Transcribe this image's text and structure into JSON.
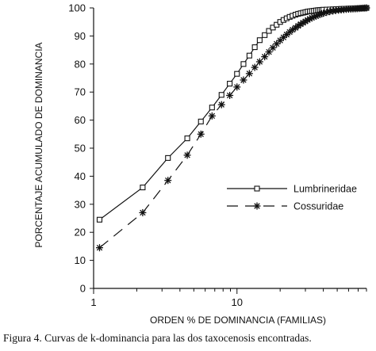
{
  "caption": "Figura 4. Curvas de k-dominancia para las dos taxocenosis encontradas.",
  "chart_data": {
    "type": "line",
    "xscale": "log",
    "xlim": [
      1,
      80
    ],
    "ylim": [
      0,
      100
    ],
    "xticks": [
      1,
      10
    ],
    "xtick_labels": [
      "1",
      "10"
    ],
    "yticks": [
      0,
      10,
      20,
      30,
      40,
      50,
      60,
      70,
      80,
      90,
      100
    ],
    "xlabel": "ORDEN % DE DOMINANCIA (FAMILIAS)",
    "ylabel": "PORCENTAJE ACUMULADO DE DOMINANCIA",
    "legend_position": "center-right",
    "series": [
      {
        "name": "Lumbrineridae",
        "marker": "square",
        "line_style": "solid",
        "x": [
          1.1,
          2.2,
          3.3,
          4.5,
          5.6,
          6.7,
          7.8,
          8.9,
          10.0,
          11.1,
          12.2,
          13.3,
          14.4,
          15.6,
          16.7,
          17.8,
          18.9,
          20.0,
          21.1,
          22.2,
          23.3,
          24.4,
          25.6,
          26.7,
          27.8,
          28.9,
          30.0,
          31.1,
          32.2,
          33.3,
          34.4,
          35.6,
          36.7,
          37.8,
          38.9,
          40.0,
          42.2,
          44.4,
          46.7,
          48.9,
          51.1,
          53.3,
          55.6,
          57.8,
          60.0,
          62.2,
          64.4,
          66.7,
          68.9,
          71.1,
          73.3,
          75.6,
          77.8,
          80.0
        ],
        "y": [
          24.5,
          36.0,
          46.5,
          53.5,
          59.5,
          64.5,
          69.0,
          73.0,
          76.5,
          80.0,
          83.0,
          86.0,
          88.5,
          90.3,
          91.8,
          93.0,
          94.0,
          95.0,
          95.7,
          96.3,
          96.8,
          97.2,
          97.6,
          97.9,
          98.1,
          98.3,
          98.5,
          98.7,
          98.8,
          98.9,
          99.0,
          99.1,
          99.2,
          99.25,
          99.3,
          99.35,
          99.4,
          99.45,
          99.5,
          99.55,
          99.6,
          99.65,
          99.7,
          99.72,
          99.75,
          99.78,
          99.8,
          99.82,
          99.85,
          99.87,
          99.9,
          99.92,
          99.95,
          100.0
        ]
      },
      {
        "name": "Cossuridae",
        "marker": "asterisk",
        "line_style": "dashed",
        "x": [
          1.1,
          2.2,
          3.3,
          4.5,
          5.6,
          6.7,
          7.8,
          8.9,
          10.0,
          11.1,
          12.2,
          13.3,
          14.4,
          15.6,
          16.7,
          17.8,
          18.9,
          20.0,
          21.1,
          22.2,
          23.3,
          24.4,
          25.6,
          26.7,
          27.8,
          28.9,
          30.0,
          31.1,
          32.2,
          33.3,
          34.4,
          35.6,
          36.7,
          37.8,
          38.9,
          40.0,
          42.2,
          44.4,
          46.7,
          48.9,
          51.1,
          53.3,
          55.6,
          57.8,
          60.0,
          62.2,
          64.4,
          66.7,
          68.9,
          71.1,
          73.3,
          75.6,
          77.8,
          80.0
        ],
        "y": [
          14.5,
          27.0,
          38.5,
          47.5,
          55.0,
          61.5,
          65.5,
          68.8,
          71.8,
          74.3,
          76.6,
          78.8,
          80.8,
          82.6,
          84.3,
          85.8,
          87.2,
          88.4,
          89.5,
          90.5,
          91.4,
          92.2,
          92.9,
          93.6,
          94.2,
          94.7,
          95.2,
          95.7,
          96.1,
          96.5,
          96.8,
          97.1,
          97.4,
          97.7,
          97.9,
          98.1,
          98.4,
          98.7,
          98.9,
          99.1,
          99.2,
          99.3,
          99.4,
          99.5,
          99.55,
          99.6,
          99.65,
          99.7,
          99.75,
          99.8,
          99.85,
          99.9,
          99.95,
          100.0
        ]
      }
    ]
  }
}
